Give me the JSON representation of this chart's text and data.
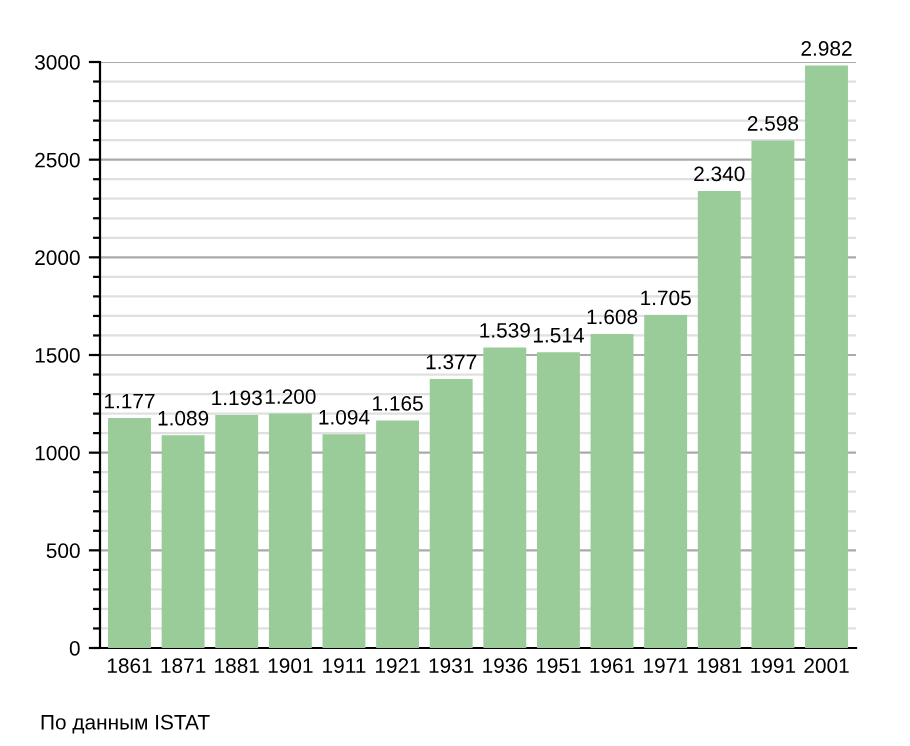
{
  "chart_data": {
    "type": "bar",
    "categories": [
      "1861",
      "1871",
      "1881",
      "1901",
      "1911",
      "1921",
      "1931",
      "1936",
      "1951",
      "1961",
      "1971",
      "1981",
      "1991",
      "2001"
    ],
    "values": [
      1177,
      1089,
      1193,
      1200,
      1094,
      1165,
      1377,
      1539,
      1514,
      1608,
      1705,
      2340,
      2598,
      2982
    ],
    "value_labels": [
      "1.177",
      "1.089",
      "1.193",
      "1.200",
      "1.094",
      "1.165",
      "1.377",
      "1.539",
      "1.514",
      "1.608",
      "1.705",
      "2.340",
      "2.598",
      "2.982"
    ],
    "color": "#99cc99",
    "ylim": [
      0,
      3000
    ],
    "yticks": [
      0,
      {
        "value": 100,
        "label": null
      },
      {
        "value": 200,
        "label": null
      },
      {
        "value": 300,
        "label": null
      },
      {
        "value": 400,
        "label": null
      },
      500,
      {
        "value": 600,
        "label": null
      },
      {
        "value": 700,
        "label": null
      },
      {
        "value": 800,
        "label": null
      },
      {
        "value": 900,
        "label": null
      },
      1000,
      {
        "value": 1100,
        "label": null
      },
      {
        "value": 1200,
        "label": null
      },
      {
        "value": 1300,
        "label": null
      },
      {
        "value": 1400,
        "label": null
      },
      1500,
      {
        "value": 1600,
        "label": null
      },
      {
        "value": 1700,
        "label": null
      },
      {
        "value": 1800,
        "label": null
      },
      {
        "value": 1900,
        "label": null
      },
      2000,
      {
        "value": 2100,
        "label": null
      },
      {
        "value": 2200,
        "label": null
      },
      {
        "value": 2300,
        "label": null
      },
      {
        "value": 2400,
        "label": null
      },
      2500,
      {
        "value": 2600,
        "label": null
      },
      {
        "value": 2700,
        "label": null
      },
      {
        "value": 2800,
        "label": null
      },
      {
        "value": 2900,
        "label": null
      },
      3000
    ],
    "grid": "y",
    "annotations": [
      "По данным ISTAT"
    ]
  }
}
